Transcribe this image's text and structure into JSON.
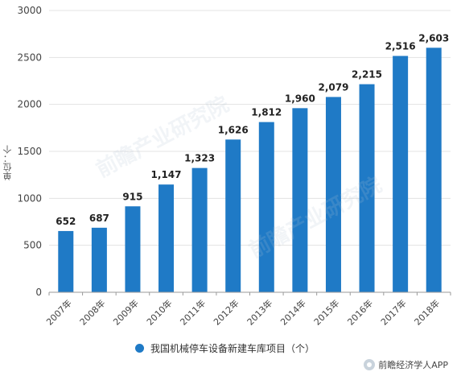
{
  "chart_data": {
    "type": "bar",
    "categories": [
      "2007年",
      "2008年",
      "2009年",
      "2010年",
      "2011年",
      "2012年",
      "2013年",
      "2014年",
      "2015年",
      "2016年",
      "2017年",
      "2018年"
    ],
    "series": [
      {
        "name": "我国机械停车设备新建车库项目（个）",
        "values": [
          652,
          687,
          915,
          1147,
          1323,
          1626,
          1812,
          1960,
          2079,
          2215,
          2516,
          2603
        ]
      }
    ],
    "data_labels": [
      "652",
      "687",
      "915",
      "1,147",
      "1,323",
      "1,626",
      "1,812",
      "1,960",
      "2,079",
      "2,215",
      "2,516",
      "2,603"
    ],
    "ylabel": "单位：个",
    "ylim": [
      0,
      3000
    ],
    "yticks": [
      0,
      500,
      1000,
      1500,
      2000,
      2500,
      3000
    ],
    "grid": true,
    "legend_position": "bottom",
    "bar_color": "#1f7ac6"
  },
  "credit": {
    "text": "前瞻经济学人APP"
  }
}
